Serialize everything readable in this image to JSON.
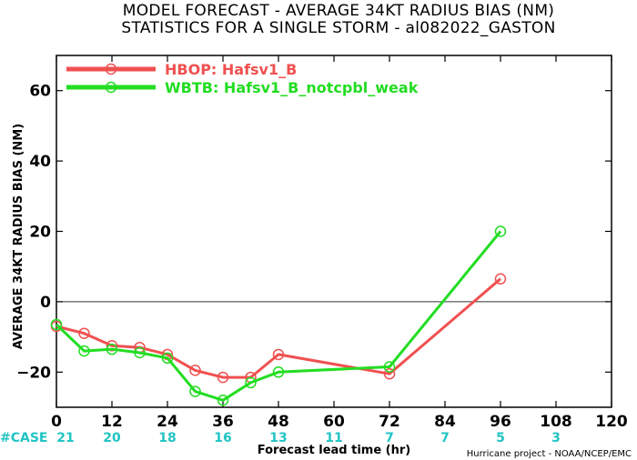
{
  "title_line1": "MODEL FORECAST - AVERAGE 34KT RADIUS BIAS (NM)",
  "title_line2": "STATISTICS FOR A SINGLE STORM - al082022_GASTON",
  "credit": "Hurricane project - NOAA/NCEP/EMC",
  "case_label": "#CASE",
  "colors": {
    "red": "#f05050",
    "green": "#22dd22",
    "cyan": "#22c4c4",
    "axis": "#000000"
  },
  "chart_data": {
    "type": "line",
    "xlabel": "Forecast lead time (hr)",
    "ylabel": "AVERAGE 34KT RADIUS BIAS (NM)",
    "xlim": [
      0,
      120
    ],
    "ylim": [
      -30,
      70
    ],
    "xticks": [
      0,
      12,
      24,
      36,
      48,
      60,
      72,
      84,
      96,
      108,
      120
    ],
    "yticks": [
      -20,
      0,
      20,
      40,
      60
    ],
    "zero_line": true,
    "legend_position": "top-left",
    "series": [
      {
        "name": "HBOP: Hafsv1_B",
        "color": "#f05050",
        "x": [
          0,
          6,
          12,
          18,
          24,
          30,
          36,
          42,
          48,
          72,
          96
        ],
        "y": [
          -7,
          -9,
          -12.5,
          -13,
          -15,
          -19.5,
          -21.5,
          -21.5,
          -15,
          -20.5,
          6.5
        ]
      },
      {
        "name": "WBTB: Hafsv1_B_notcpbl_weak",
        "color": "#22dd22",
        "x": [
          0,
          6,
          12,
          18,
          24,
          30,
          36,
          42,
          48,
          72,
          96
        ],
        "y": [
          -6.5,
          -14,
          -13.5,
          -14.5,
          -16,
          -25.5,
          -28,
          -23,
          -20,
          -18.5,
          20
        ]
      }
    ],
    "cases": {
      "x": [
        0,
        12,
        24,
        36,
        48,
        60,
        72,
        84,
        96,
        108
      ],
      "values": [
        "21",
        "20",
        "18",
        "16",
        "13",
        "11",
        "7",
        "7",
        "5",
        "3"
      ]
    }
  }
}
